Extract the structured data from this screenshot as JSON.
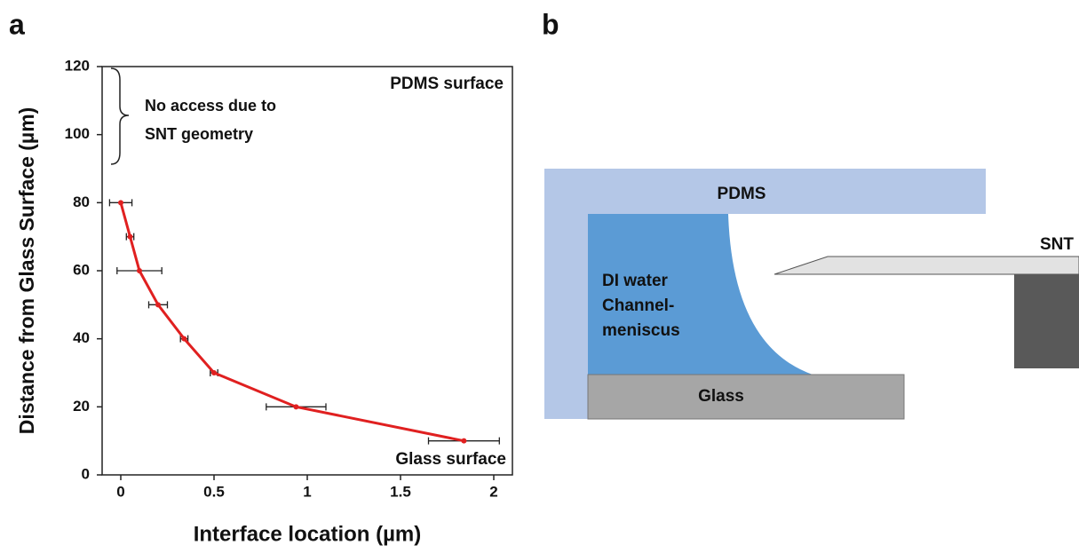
{
  "panels": [
    "a",
    "b"
  ],
  "chart_data": {
    "type": "line",
    "xlabel": "Interface location (µm)",
    "ylabel": "Distance from Glass Surface (µm)",
    "x": [
      0,
      0.05,
      0.1,
      0.2,
      0.34,
      0.5,
      0.94,
      1.84
    ],
    "values": [
      80,
      70,
      60,
      50,
      40,
      30,
      20,
      10
    ],
    "xerr": [
      0.06,
      0.02,
      0.12,
      0.05,
      0.02,
      0.02,
      0.16,
      0.19
    ],
    "color": "#e02020",
    "xlim": [
      -0.1,
      2.1
    ],
    "ylim": [
      0,
      120
    ],
    "xticks": [
      0,
      0.5,
      1,
      1.5,
      2
    ],
    "yticks": [
      0,
      20,
      40,
      60,
      80,
      100,
      120
    ],
    "annotations": [
      "PDMS surface",
      "Glass surface",
      "No access due to",
      "SNT geometry"
    ]
  },
  "diagram": {
    "labels": [
      "PDMS",
      "DI water",
      "Channel-",
      "meniscus",
      "Glass",
      "SNT"
    ]
  }
}
